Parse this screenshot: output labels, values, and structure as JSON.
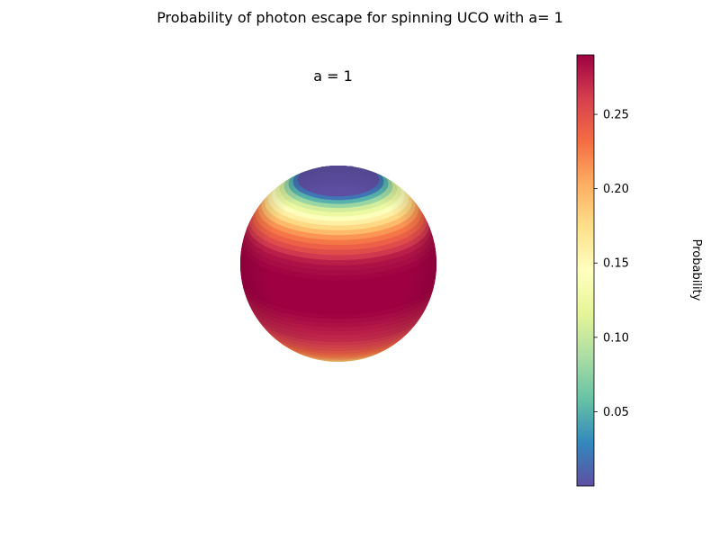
{
  "chart_data": {
    "type": "heatmap",
    "title": "Probability of photon escape for spinning UCO with a= 1",
    "subtitle": "a = 1",
    "colorbar": {
      "label": "Probability",
      "colormap": "Spectral_r",
      "range": [
        0.0,
        0.29
      ],
      "ticks": [
        0.05,
        0.1,
        0.15,
        0.2,
        0.25
      ],
      "tick_labels": [
        "0.05",
        "0.10",
        "0.15",
        "0.20",
        "0.25"
      ]
    },
    "surface": "sphere",
    "probability_by_polar_angle_deg": [
      {
        "theta": 0,
        "p": 0.0
      },
      {
        "theta": 10,
        "p": 0.0
      },
      {
        "theta": 20,
        "p": 0.0
      },
      {
        "theta": 25,
        "p": 0.0
      },
      {
        "theta": 30,
        "p": 0.05
      },
      {
        "theta": 35,
        "p": 0.1
      },
      {
        "theta": 40,
        "p": 0.13
      },
      {
        "theta": 45,
        "p": 0.16
      },
      {
        "theta": 50,
        "p": 0.19
      },
      {
        "theta": 55,
        "p": 0.22
      },
      {
        "theta": 60,
        "p": 0.24
      },
      {
        "theta": 65,
        "p": 0.26
      },
      {
        "theta": 70,
        "p": 0.28
      },
      {
        "theta": 75,
        "p": 0.285
      },
      {
        "theta": 80,
        "p": 0.29
      },
      {
        "theta": 90,
        "p": 0.29
      },
      {
        "theta": 100,
        "p": 0.29
      },
      {
        "theta": 110,
        "p": 0.28
      },
      {
        "theta": 120,
        "p": 0.27
      },
      {
        "theta": 130,
        "p": 0.25
      },
      {
        "theta": 140,
        "p": 0.22
      },
      {
        "theta": 150,
        "p": 0.17
      },
      {
        "theta": 160,
        "p": 0.12
      },
      {
        "theta": 170,
        "p": 0.06
      },
      {
        "theta": 180,
        "p": 0.0
      }
    ]
  }
}
